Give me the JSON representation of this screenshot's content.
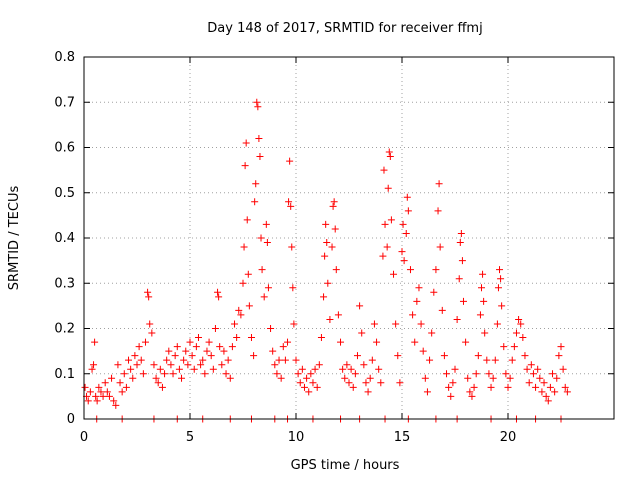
{
  "chart_data": {
    "type": "scatter",
    "title": "Day 148 of 2017, SRMTID for receiver ffmj",
    "xlabel": "GPS time / hours",
    "ylabel": "SRMTID / TECUs",
    "xlim": [
      0,
      25
    ],
    "ylim": [
      0,
      0.8
    ],
    "xticks": [
      0,
      5,
      10,
      15,
      20
    ],
    "yticks": [
      0,
      0.1,
      0.2,
      0.3,
      0.4,
      0.5,
      0.6,
      0.7,
      0.8
    ],
    "xtick_labels": [
      "0",
      "5",
      "10",
      "15",
      "20"
    ],
    "ytick_labels": [
      "0",
      "0.1",
      "0.2",
      "0.3",
      "0.4",
      "0.5",
      "0.6",
      "0.7",
      "0.8"
    ],
    "grid": true,
    "marker": "+",
    "color": "#ff0000",
    "series": [
      {
        "name": "SRMTID",
        "points": [
          [
            0.05,
            0.07
          ],
          [
            0.12,
            0.05
          ],
          [
            0.2,
            0.04
          ],
          [
            0.3,
            0.06
          ],
          [
            0.38,
            0.11
          ],
          [
            0.45,
            0.12
          ],
          [
            0.5,
            0.17
          ],
          [
            0.55,
            0.05
          ],
          [
            0.62,
            0.04
          ],
          [
            0.7,
            0.07
          ],
          [
            0.8,
            0.06
          ],
          [
            0.9,
            0.05
          ],
          [
            1.0,
            0.08
          ],
          [
            1.1,
            0.06
          ],
          [
            1.2,
            0.05
          ],
          [
            1.3,
            0.09
          ],
          [
            1.4,
            0.04
          ],
          [
            1.5,
            0.03
          ],
          [
            1.6,
            0.12
          ],
          [
            1.7,
            0.08
          ],
          [
            1.8,
            0.06
          ],
          [
            1.9,
            0.1
          ],
          [
            2.0,
            0.07
          ],
          [
            2.1,
            0.13
          ],
          [
            2.2,
            0.11
          ],
          [
            2.3,
            0.09
          ],
          [
            2.4,
            0.14
          ],
          [
            2.5,
            0.12
          ],
          [
            2.6,
            0.16
          ],
          [
            2.7,
            0.13
          ],
          [
            2.8,
            0.1
          ],
          [
            2.9,
            0.17
          ],
          [
            3.0,
            0.28
          ],
          [
            3.05,
            0.27
          ],
          [
            3.1,
            0.21
          ],
          [
            3.2,
            0.19
          ],
          [
            3.3,
            0.12
          ],
          [
            3.4,
            0.09
          ],
          [
            3.5,
            0.08
          ],
          [
            3.6,
            0.11
          ],
          [
            3.7,
            0.07
          ],
          [
            3.8,
            0.1
          ],
          [
            3.9,
            0.13
          ],
          [
            4.0,
            0.15
          ],
          [
            4.1,
            0.12
          ],
          [
            4.2,
            0.1
          ],
          [
            4.3,
            0.14
          ],
          [
            4.4,
            0.16
          ],
          [
            4.5,
            0.11
          ],
          [
            4.6,
            0.09
          ],
          [
            4.7,
            0.13
          ],
          [
            4.8,
            0.15
          ],
          [
            4.9,
            0.12
          ],
          [
            5.0,
            0.17
          ],
          [
            5.1,
            0.14
          ],
          [
            5.2,
            0.11
          ],
          [
            5.3,
            0.16
          ],
          [
            5.4,
            0.18
          ],
          [
            5.5,
            0.12
          ],
          [
            5.6,
            0.13
          ],
          [
            5.7,
            0.1
          ],
          [
            5.8,
            0.15
          ],
          [
            5.9,
            0.17
          ],
          [
            6.0,
            0.14
          ],
          [
            6.1,
            0.11
          ],
          [
            6.2,
            0.2
          ],
          [
            6.3,
            0.28
          ],
          [
            6.35,
            0.27
          ],
          [
            6.4,
            0.16
          ],
          [
            6.5,
            0.12
          ],
          [
            6.6,
            0.15
          ],
          [
            6.7,
            0.1
          ],
          [
            6.8,
            0.13
          ],
          [
            6.9,
            0.09
          ],
          [
            7.0,
            0.16
          ],
          [
            7.1,
            0.21
          ],
          [
            7.2,
            0.18
          ],
          [
            7.3,
            0.24
          ],
          [
            7.4,
            0.23
          ],
          [
            7.5,
            0.3
          ],
          [
            7.55,
            0.38
          ],
          [
            7.6,
            0.56
          ],
          [
            7.65,
            0.61
          ],
          [
            7.7,
            0.44
          ],
          [
            7.75,
            0.32
          ],
          [
            7.8,
            0.25
          ],
          [
            7.9,
            0.18
          ],
          [
            8.0,
            0.14
          ],
          [
            8.05,
            0.48
          ],
          [
            8.1,
            0.52
          ],
          [
            8.15,
            0.7
          ],
          [
            8.2,
            0.69
          ],
          [
            8.25,
            0.62
          ],
          [
            8.3,
            0.58
          ],
          [
            8.35,
            0.4
          ],
          [
            8.4,
            0.33
          ],
          [
            8.5,
            0.27
          ],
          [
            8.6,
            0.43
          ],
          [
            8.65,
            0.39
          ],
          [
            8.7,
            0.29
          ],
          [
            8.8,
            0.2
          ],
          [
            8.9,
            0.15
          ],
          [
            9.0,
            0.12
          ],
          [
            9.1,
            0.1
          ],
          [
            9.2,
            0.13
          ],
          [
            9.3,
            0.09
          ],
          [
            9.4,
            0.16
          ],
          [
            9.5,
            0.13
          ],
          [
            9.6,
            0.17
          ],
          [
            9.65,
            0.48
          ],
          [
            9.7,
            0.57
          ],
          [
            9.75,
            0.47
          ],
          [
            9.8,
            0.38
          ],
          [
            9.85,
            0.29
          ],
          [
            9.9,
            0.21
          ],
          [
            10.0,
            0.13
          ],
          [
            10.1,
            0.1
          ],
          [
            10.2,
            0.08
          ],
          [
            10.3,
            0.11
          ],
          [
            10.4,
            0.07
          ],
          [
            10.5,
            0.09
          ],
          [
            10.6,
            0.06
          ],
          [
            10.7,
            0.1
          ],
          [
            10.8,
            0.08
          ],
          [
            10.9,
            0.11
          ],
          [
            11.0,
            0.07
          ],
          [
            11.1,
            0.12
          ],
          [
            11.2,
            0.18
          ],
          [
            11.3,
            0.27
          ],
          [
            11.35,
            0.36
          ],
          [
            11.4,
            0.43
          ],
          [
            11.45,
            0.39
          ],
          [
            11.5,
            0.3
          ],
          [
            11.6,
            0.22
          ],
          [
            11.7,
            0.38
          ],
          [
            11.75,
            0.47
          ],
          [
            11.8,
            0.48
          ],
          [
            11.85,
            0.42
          ],
          [
            11.9,
            0.33
          ],
          [
            12.0,
            0.23
          ],
          [
            12.1,
            0.17
          ],
          [
            12.2,
            0.11
          ],
          [
            12.3,
            0.09
          ],
          [
            12.4,
            0.12
          ],
          [
            12.5,
            0.08
          ],
          [
            12.6,
            0.11
          ],
          [
            12.7,
            0.07
          ],
          [
            12.8,
            0.1
          ],
          [
            12.9,
            0.14
          ],
          [
            13.0,
            0.25
          ],
          [
            13.1,
            0.19
          ],
          [
            13.2,
            0.12
          ],
          [
            13.3,
            0.08
          ],
          [
            13.4,
            0.06
          ],
          [
            13.5,
            0.09
          ],
          [
            13.6,
            0.13
          ],
          [
            13.7,
            0.21
          ],
          [
            13.8,
            0.17
          ],
          [
            13.9,
            0.11
          ],
          [
            14.0,
            0.08
          ],
          [
            14.1,
            0.36
          ],
          [
            14.15,
            0.55
          ],
          [
            14.2,
            0.43
          ],
          [
            14.3,
            0.38
          ],
          [
            14.35,
            0.51
          ],
          [
            14.4,
            0.59
          ],
          [
            14.45,
            0.58
          ],
          [
            14.5,
            0.44
          ],
          [
            14.6,
            0.32
          ],
          [
            14.7,
            0.21
          ],
          [
            14.8,
            0.14
          ],
          [
            14.9,
            0.08
          ],
          [
            15.0,
            0.37
          ],
          [
            15.05,
            0.43
          ],
          [
            15.1,
            0.35
          ],
          [
            15.2,
            0.41
          ],
          [
            15.25,
            0.49
          ],
          [
            15.3,
            0.46
          ],
          [
            15.4,
            0.33
          ],
          [
            15.5,
            0.23
          ],
          [
            15.6,
            0.17
          ],
          [
            15.7,
            0.26
          ],
          [
            15.8,
            0.29
          ],
          [
            15.9,
            0.21
          ],
          [
            16.0,
            0.15
          ],
          [
            16.1,
            0.09
          ],
          [
            16.2,
            0.06
          ],
          [
            16.3,
            0.13
          ],
          [
            16.4,
            0.19
          ],
          [
            16.5,
            0.28
          ],
          [
            16.6,
            0.33
          ],
          [
            16.7,
            0.46
          ],
          [
            16.75,
            0.52
          ],
          [
            16.8,
            0.38
          ],
          [
            16.9,
            0.24
          ],
          [
            17.0,
            0.14
          ],
          [
            17.1,
            0.1
          ],
          [
            17.2,
            0.07
          ],
          [
            17.3,
            0.05
          ],
          [
            17.4,
            0.08
          ],
          [
            17.5,
            0.11
          ],
          [
            17.6,
            0.22
          ],
          [
            17.7,
            0.31
          ],
          [
            17.75,
            0.39
          ],
          [
            17.8,
            0.41
          ],
          [
            17.85,
            0.35
          ],
          [
            17.9,
            0.26
          ],
          [
            18.0,
            0.17
          ],
          [
            18.1,
            0.09
          ],
          [
            18.2,
            0.06
          ],
          [
            18.3,
            0.05
          ],
          [
            18.4,
            0.07
          ],
          [
            18.5,
            0.1
          ],
          [
            18.6,
            0.14
          ],
          [
            18.7,
            0.23
          ],
          [
            18.75,
            0.29
          ],
          [
            18.8,
            0.32
          ],
          [
            18.85,
            0.26
          ],
          [
            18.9,
            0.19
          ],
          [
            19.0,
            0.13
          ],
          [
            19.1,
            0.1
          ],
          [
            19.2,
            0.07
          ],
          [
            19.3,
            0.09
          ],
          [
            19.4,
            0.13
          ],
          [
            19.5,
            0.21
          ],
          [
            19.55,
            0.29
          ],
          [
            19.6,
            0.33
          ],
          [
            19.65,
            0.31
          ],
          [
            19.7,
            0.25
          ],
          [
            19.8,
            0.16
          ],
          [
            19.9,
            0.1
          ],
          [
            20.0,
            0.07
          ],
          [
            20.1,
            0.09
          ],
          [
            20.2,
            0.13
          ],
          [
            20.3,
            0.16
          ],
          [
            20.4,
            0.19
          ],
          [
            20.5,
            0.22
          ],
          [
            20.6,
            0.21
          ],
          [
            20.7,
            0.18
          ],
          [
            20.8,
            0.14
          ],
          [
            20.9,
            0.11
          ],
          [
            21.0,
            0.08
          ],
          [
            21.1,
            0.12
          ],
          [
            21.2,
            0.1
          ],
          [
            21.3,
            0.07
          ],
          [
            21.4,
            0.11
          ],
          [
            21.5,
            0.09
          ],
          [
            21.6,
            0.06
          ],
          [
            21.7,
            0.08
          ],
          [
            21.8,
            0.05
          ],
          [
            21.9,
            0.04
          ],
          [
            22.0,
            0.07
          ],
          [
            22.1,
            0.1
          ],
          [
            22.2,
            0.06
          ],
          [
            22.3,
            0.09
          ],
          [
            22.4,
            0.14
          ],
          [
            22.5,
            0.16
          ],
          [
            22.6,
            0.11
          ],
          [
            22.7,
            0.07
          ],
          [
            22.8,
            0.06
          ],
          [
            0.6,
            0.0
          ],
          [
            1.8,
            0.0
          ],
          [
            3.3,
            0.0
          ],
          [
            4.4,
            0.0
          ],
          [
            5.6,
            0.0
          ],
          [
            6.9,
            0.0
          ],
          [
            7.9,
            0.0
          ],
          [
            9.0,
            0.0
          ],
          [
            9.6,
            0.0
          ],
          [
            10.8,
            0.0
          ],
          [
            12.1,
            0.0
          ],
          [
            13.0,
            0.0
          ],
          [
            14.2,
            0.0
          ],
          [
            15.3,
            0.0
          ],
          [
            16.6,
            0.0
          ],
          [
            17.6,
            0.0
          ],
          [
            19.2,
            0.0
          ],
          [
            20.4,
            0.0
          ],
          [
            21.3,
            0.0
          ],
          [
            22.5,
            0.0
          ]
        ]
      }
    ]
  }
}
